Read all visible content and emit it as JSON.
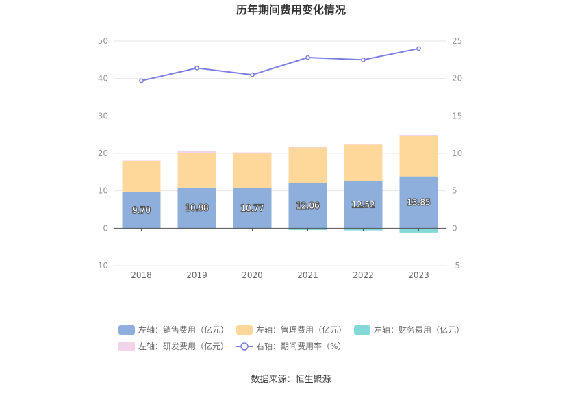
{
  "title": "历年期间费用变化情况",
  "source": "数据来源：恒生聚源",
  "chart_data": {
    "type": "bar",
    "categories": [
      "2018",
      "2019",
      "2020",
      "2021",
      "2022",
      "2023"
    ],
    "y_left": {
      "ticks": [
        "50",
        "40",
        "30",
        "20",
        "10",
        "0",
        "-10"
      ],
      "range": [
        -10,
        50
      ]
    },
    "y_right": {
      "ticks": [
        "25",
        "20",
        "15",
        "10",
        "5",
        "0",
        "-5"
      ],
      "range": [
        -5,
        25
      ]
    },
    "series": [
      {
        "name": "左轴：销售费用（亿元）",
        "axis": "left",
        "stack": "a",
        "color": "#8eaedb",
        "values": [
          9.7,
          10.88,
          10.77,
          12.06,
          12.52,
          13.85
        ],
        "labels": [
          "9.70",
          "10.88",
          "10.77",
          "12.06",
          "12.52",
          "13.85"
        ]
      },
      {
        "name": "左轴：管理费用（亿元）",
        "axis": "left",
        "stack": "a",
        "color": "#fdd89a",
        "values": [
          8.3,
          9.3,
          9.2,
          9.5,
          9.8,
          10.8
        ]
      },
      {
        "name": "左轴：财务费用（亿元）",
        "axis": "left",
        "stack": "a",
        "color": "#85d8d8",
        "values": [
          -0.2,
          -0.2,
          -0.3,
          -0.5,
          -0.6,
          -1.2
        ]
      },
      {
        "name": "左轴：研发费用（亿元）",
        "axis": "left",
        "stack": "a",
        "color": "#f1d3ea",
        "values": [
          0.1,
          0.4,
          0.3,
          0.3,
          0.2,
          0.3
        ]
      },
      {
        "name": "右轴：期间费用率（%）",
        "axis": "right",
        "type": "line",
        "color": "#7b7fe0",
        "values": [
          19.7,
          21.4,
          20.5,
          22.8,
          22.5,
          24.0
        ]
      }
    ]
  }
}
